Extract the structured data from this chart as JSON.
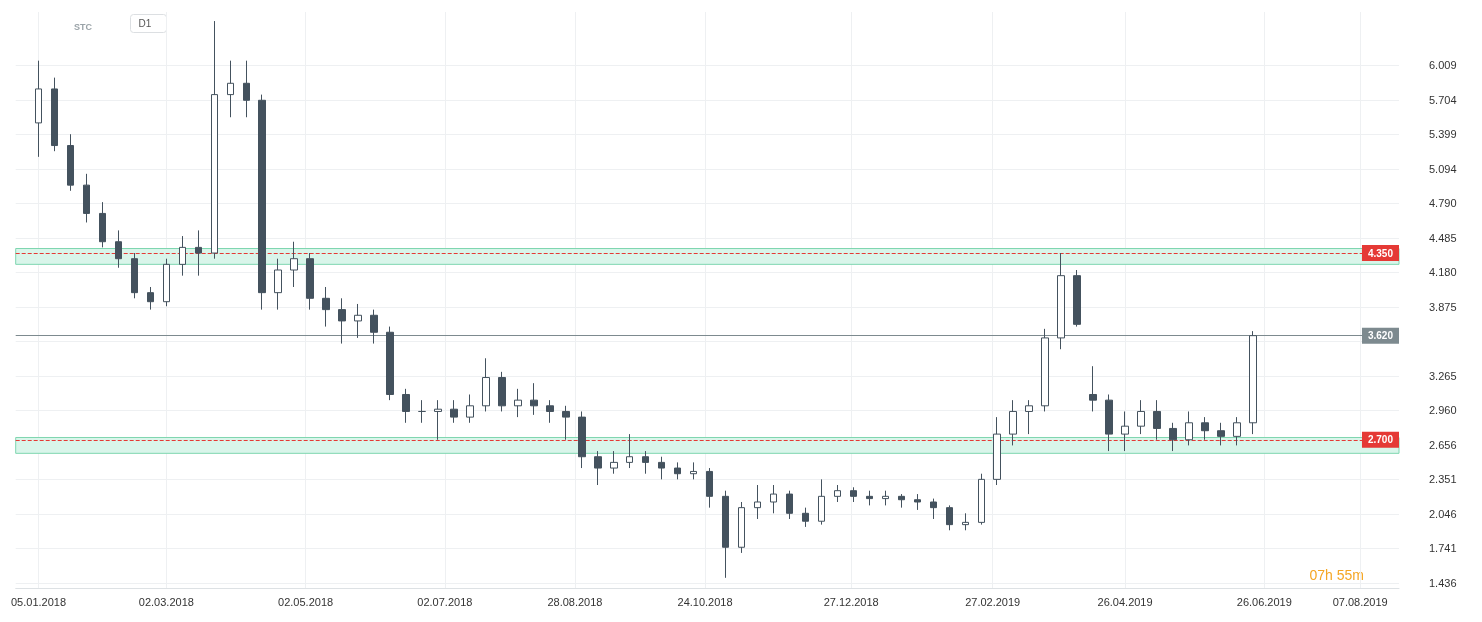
{
  "chart_data": {
    "type": "candlestick",
    "annotations": [
      "STC",
      "D1",
      "07h 55m"
    ],
    "x": [
      "2018-01-05",
      "2018-01-12",
      "2018-01-19",
      "2018-01-26",
      "2018-02-02",
      "2018-02-09",
      "2018-02-16",
      "2018-02-23",
      "2018-03-02",
      "2018-03-09",
      "2018-03-16",
      "2018-03-23",
      "2018-03-30",
      "2018-04-06",
      "2018-04-13",
      "2018-04-20",
      "2018-04-27",
      "2018-05-04",
      "2018-05-11",
      "2018-05-18",
      "2018-05-25",
      "2018-06-01",
      "2018-06-08",
      "2018-06-15",
      "2018-06-22",
      "2018-06-29",
      "2018-07-06",
      "2018-07-13",
      "2018-07-20",
      "2018-07-27",
      "2018-08-03",
      "2018-08-10",
      "2018-08-17",
      "2018-08-24",
      "2018-08-31",
      "2018-09-07",
      "2018-09-14",
      "2018-09-21",
      "2018-09-28",
      "2018-10-05",
      "2018-10-12",
      "2018-10-19",
      "2018-10-26",
      "2018-11-02",
      "2018-11-09",
      "2018-11-16",
      "2018-11-23",
      "2018-11-30",
      "2018-12-07",
      "2018-12-14",
      "2018-12-21",
      "2018-12-28",
      "2019-01-04",
      "2019-01-11",
      "2019-01-18",
      "2019-01-25",
      "2019-02-01",
      "2019-02-08",
      "2019-02-15",
      "2019-02-22",
      "2019-03-01",
      "2019-03-08",
      "2019-03-15",
      "2019-03-22",
      "2019-03-29",
      "2019-04-05",
      "2019-04-12",
      "2019-04-19",
      "2019-04-26",
      "2019-05-03",
      "2019-05-10",
      "2019-05-17",
      "2019-05-24",
      "2019-05-31",
      "2019-06-07",
      "2019-06-14",
      "2019-06-21"
    ],
    "ohlc": [
      [
        5.5,
        6.05,
        5.2,
        5.8
      ],
      [
        5.8,
        5.9,
        5.25,
        5.3
      ],
      [
        5.3,
        5.4,
        4.9,
        4.95
      ],
      [
        4.95,
        5.05,
        4.62,
        4.7
      ],
      [
        4.7,
        4.8,
        4.4,
        4.45
      ],
      [
        4.45,
        4.55,
        4.22,
        4.3
      ],
      [
        4.3,
        4.35,
        3.95,
        4.0
      ],
      [
        4.0,
        4.05,
        3.85,
        3.92
      ],
      [
        3.92,
        4.3,
        3.88,
        4.25
      ],
      [
        4.25,
        4.5,
        4.15,
        4.4
      ],
      [
        4.4,
        4.55,
        4.15,
        4.35
      ],
      [
        4.35,
        6.4,
        4.3,
        5.75
      ],
      [
        5.75,
        6.05,
        5.55,
        5.85
      ],
      [
        5.85,
        6.05,
        5.55,
        5.7
      ],
      [
        5.7,
        5.75,
        3.85,
        4.0
      ],
      [
        4.0,
        4.3,
        3.85,
        4.2
      ],
      [
        4.2,
        4.45,
        4.05,
        4.3
      ],
      [
        4.3,
        4.35,
        3.85,
        3.95
      ],
      [
        3.95,
        4.05,
        3.7,
        3.85
      ],
      [
        3.85,
        3.95,
        3.55,
        3.75
      ],
      [
        3.75,
        3.9,
        3.6,
        3.8
      ],
      [
        3.8,
        3.85,
        3.55,
        3.65
      ],
      [
        3.65,
        3.7,
        3.05,
        3.1
      ],
      [
        3.1,
        3.15,
        2.85,
        2.95
      ],
      [
        2.95,
        3.05,
        2.85,
        2.95
      ],
      [
        2.95,
        3.05,
        2.7,
        2.97
      ],
      [
        2.97,
        3.05,
        2.85,
        2.9
      ],
      [
        2.9,
        3.1,
        2.85,
        3.0
      ],
      [
        3.0,
        3.42,
        2.95,
        3.25
      ],
      [
        3.25,
        3.3,
        2.95,
        3.0
      ],
      [
        3.0,
        3.15,
        2.9,
        3.05
      ],
      [
        3.05,
        3.2,
        2.92,
        3.0
      ],
      [
        3.0,
        3.05,
        2.85,
        2.95
      ],
      [
        2.95,
        3.0,
        2.7,
        2.9
      ],
      [
        2.9,
        2.95,
        2.45,
        2.55
      ],
      [
        2.55,
        2.6,
        2.3,
        2.45
      ],
      [
        2.45,
        2.6,
        2.4,
        2.5
      ],
      [
        2.5,
        2.75,
        2.45,
        2.55
      ],
      [
        2.55,
        2.6,
        2.4,
        2.5
      ],
      [
        2.5,
        2.55,
        2.35,
        2.45
      ],
      [
        2.45,
        2.5,
        2.35,
        2.4
      ],
      [
        2.4,
        2.5,
        2.35,
        2.42
      ],
      [
        2.42,
        2.45,
        2.1,
        2.2
      ],
      [
        2.2,
        2.25,
        1.48,
        1.75
      ],
      [
        1.75,
        2.15,
        1.7,
        2.1
      ],
      [
        2.1,
        2.3,
        2.0,
        2.15
      ],
      [
        2.15,
        2.3,
        2.05,
        2.22
      ],
      [
        2.22,
        2.25,
        2.0,
        2.05
      ],
      [
        2.05,
        2.1,
        1.93,
        1.98
      ],
      [
        1.98,
        2.35,
        1.95,
        2.2
      ],
      [
        2.2,
        2.3,
        2.15,
        2.25
      ],
      [
        2.25,
        2.28,
        2.15,
        2.2
      ],
      [
        2.2,
        2.25,
        2.12,
        2.18
      ],
      [
        2.18,
        2.25,
        2.12,
        2.2
      ],
      [
        2.2,
        2.22,
        2.1,
        2.17
      ],
      [
        2.17,
        2.22,
        2.08,
        2.15
      ],
      [
        2.15,
        2.18,
        2.0,
        2.1
      ],
      [
        2.1,
        2.12,
        1.9,
        1.95
      ],
      [
        1.95,
        2.05,
        1.9,
        1.97
      ],
      [
        1.97,
        2.4,
        1.95,
        2.35
      ],
      [
        2.35,
        2.9,
        2.3,
        2.75
      ],
      [
        2.75,
        3.05,
        2.65,
        2.95
      ],
      [
        2.95,
        3.05,
        2.75,
        3.0
      ],
      [
        3.0,
        3.68,
        2.95,
        3.6
      ],
      [
        3.6,
        4.35,
        3.5,
        4.15
      ],
      [
        4.15,
        4.2,
        3.7,
        3.72
      ],
      [
        3.1,
        3.35,
        2.95,
        3.05
      ],
      [
        3.05,
        3.1,
        2.6,
        2.75
      ],
      [
        2.75,
        2.95,
        2.6,
        2.82
      ],
      [
        2.82,
        3.05,
        2.75,
        2.95
      ],
      [
        2.95,
        3.05,
        2.7,
        2.8
      ],
      [
        2.8,
        2.85,
        2.6,
        2.7
      ],
      [
        2.7,
        2.95,
        2.65,
        2.85
      ],
      [
        2.85,
        2.9,
        2.7,
        2.78
      ],
      [
        2.78,
        2.85,
        2.65,
        2.73
      ],
      [
        2.73,
        2.9,
        2.65,
        2.85
      ],
      [
        2.85,
        3.66,
        2.75,
        3.62
      ]
    ],
    "color": "#44525e",
    "xlim": [
      "2017-12-26",
      "2019-08-24"
    ],
    "xticks": [
      {
        "value": "2018-01-05",
        "label": "05.01.2018"
      },
      {
        "value": "2018-03-02",
        "label": "02.03.2018"
      },
      {
        "value": "2018-05-02",
        "label": "02.05.2018"
      },
      {
        "value": "2018-07-02",
        "label": "02.07.2018"
      },
      {
        "value": "2018-08-28",
        "label": "28.08.2018"
      },
      {
        "value": "2018-10-24",
        "label": "24.10.2018"
      },
      {
        "value": "2018-12-27",
        "label": "27.12.2018"
      },
      {
        "value": "2019-02-27",
        "label": "27.02.2019"
      },
      {
        "value": "2019-04-26",
        "label": "26.04.2019"
      },
      {
        "value": "2019-06-26",
        "label": "26.06.2019"
      },
      {
        "value": "2019-08-07",
        "label": "07.08.2019"
      }
    ],
    "ylim": [
      1.39,
      6.48
    ],
    "yticks": [
      {
        "value": 1.436,
        "label": "1.436"
      },
      {
        "value": 1.741,
        "label": "1.741"
      },
      {
        "value": 2.046,
        "label": "2.046"
      },
      {
        "value": 2.351,
        "label": "2.351"
      },
      {
        "value": 2.656,
        "label": "2.656"
      },
      {
        "value": 2.96,
        "label": "2.960"
      },
      {
        "value": 3.265,
        "label": "3.265"
      },
      {
        "value": 3.57,
        "label": null
      },
      {
        "value": 3.875,
        "label": "3.875"
      },
      {
        "value": 4.18,
        "label": "4.180"
      },
      {
        "value": 4.485,
        "label": "4.485"
      },
      {
        "value": 4.79,
        "label": "4.790"
      },
      {
        "value": 5.094,
        "label": "5.094"
      },
      {
        "value": 5.399,
        "label": "5.399"
      },
      {
        "value": 5.704,
        "label": "5.704"
      },
      {
        "value": 6.009,
        "label": "6.009"
      }
    ],
    "grid": true,
    "ref_lines": [
      {
        "axis": "y",
        "value": 4.35,
        "label": "4.350",
        "color": "#e53935",
        "line_style": "dashed"
      },
      {
        "axis": "y",
        "value": 2.7,
        "label": "2.700",
        "color": "#e53935",
        "line_style": "dashed"
      },
      {
        "axis": "y",
        "value": 3.62,
        "label": "3.620",
        "color": "#7d8a8f",
        "line_style": "solid"
      }
    ],
    "bands": [
      {
        "axis": "y",
        "from": 4.25,
        "to": 4.39,
        "color": "#d9f5ea"
      },
      {
        "axis": "y",
        "from": 2.58,
        "to": 2.72,
        "color": "#d9f5ea"
      }
    ]
  }
}
